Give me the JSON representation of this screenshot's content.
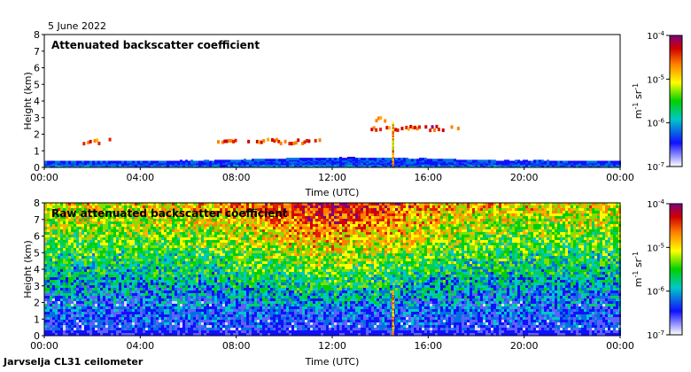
{
  "date_label": "5 June 2022",
  "footer": "Jarvselja CL31 ceilometer",
  "chart_data": [
    {
      "type": "heatmap",
      "title": "Attenuated backscatter coefficient",
      "xlabel": "Time (UTC)",
      "ylabel": "Height (km)",
      "xlim": [
        0,
        24
      ],
      "ylim": [
        0,
        8
      ],
      "x_ticks": [
        "00:00",
        "04:00",
        "08:00",
        "12:00",
        "16:00",
        "20:00",
        "00:00"
      ],
      "x_tick_values": [
        0,
        4,
        8,
        12,
        16,
        20,
        24
      ],
      "y_ticks": [
        "0",
        "1",
        "2",
        "3",
        "4",
        "5",
        "6",
        "7",
        "8"
      ],
      "colorbar": {
        "scale": "log",
        "range": [
          1e-07,
          0.0001
        ],
        "tick_labels": [
          "10-7",
          "10-6",
          "10-5",
          "10-4"
        ],
        "unit": "m-1 sr-1",
        "colors": [
          "#ffffff",
          "#1010ff",
          "#00c8c8",
          "#00d000",
          "#ffff00",
          "#ff8000",
          "#d00000",
          "#800080"
        ]
      },
      "features": {
        "boundary_layer_top_km": 0.4,
        "cloud_layers": [
          {
            "start_h": 1.6,
            "end_h": 2.8,
            "height_km": 1.5
          },
          {
            "start_h": 7.2,
            "end_h": 11.6,
            "height_km": 1.5
          },
          {
            "start_h": 13.6,
            "end_h": 17.4,
            "height_km": 2.3
          },
          {
            "start_h": 13.7,
            "end_h": 14.3,
            "height_km": 2.8
          }
        ],
        "precipitation_streak_h": 14.5
      }
    },
    {
      "type": "heatmap",
      "title": "Raw attenuated backscatter coefficient",
      "xlabel": "Time (UTC)",
      "ylabel": "Height (km)",
      "xlim": [
        0,
        24
      ],
      "ylim": [
        0,
        8
      ],
      "x_ticks": [
        "00:00",
        "04:00",
        "08:00",
        "12:00",
        "16:00",
        "20:00",
        "00:00"
      ],
      "x_tick_values": [
        0,
        4,
        8,
        12,
        16,
        20,
        24
      ],
      "y_ticks": [
        "0",
        "1",
        "2",
        "3",
        "4",
        "5",
        "6",
        "7",
        "8"
      ],
      "colorbar": {
        "scale": "log",
        "range": [
          1e-07,
          0.0001
        ],
        "tick_labels": [
          "10-7",
          "10-6",
          "10-5",
          "10-4"
        ],
        "unit": "m-1 sr-1"
      }
    }
  ]
}
